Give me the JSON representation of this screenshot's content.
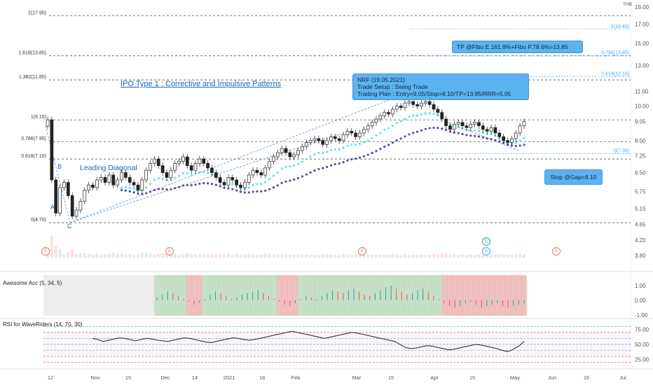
{
  "chart_title": "IPO Type 1 : Corrective and Impulsive Patterns",
  "pattern_label": "Leading Diagonal",
  "currency": "THB",
  "wave_labels": [
    "A",
    "B",
    "C"
  ],
  "fib_left": [
    {
      "label": "2(17.95)",
      "price": 17.95
    },
    {
      "label": "1.618(13.85)",
      "price": 13.85
    },
    {
      "label": "1.382(11.85)",
      "price": 11.85
    },
    {
      "label": "1(9.15)",
      "price": 9.15
    },
    {
      "label": "0.786(7.95)",
      "price": 7.95
    },
    {
      "label": "0.618(7.10)",
      "price": 7.1
    },
    {
      "label": "0(4.70)",
      "price": 4.7
    }
  ],
  "fib_right": [
    {
      "label": "1(16.45)",
      "price": 16.45
    },
    {
      "label": "0.786(13.85)",
      "price": 13.85
    },
    {
      "label": "0.618(12.10)",
      "price": 12.1
    },
    {
      "label": "0(7.35)",
      "price": 7.35
    }
  ],
  "price_ticks": [
    "19.00",
    "17.00",
    "15.00",
    "13.00",
    "11.00",
    "10.00",
    "9.05",
    "8.00",
    "7.25",
    "6.50",
    "5.75",
    "5.15",
    "4.65",
    "4.20",
    "3.80"
  ],
  "price_tick_values": [
    19.0,
    17.0,
    15.0,
    13.0,
    11.0,
    10.0,
    9.05,
    8.0,
    7.25,
    6.5,
    5.75,
    5.15,
    4.65,
    4.2,
    3.8
  ],
  "time_labels": [
    "12",
    "Nov",
    "15",
    "Dec",
    "14",
    "2021",
    "18",
    "Feb",
    "Mar",
    "15",
    "Apr",
    "15",
    "May",
    "Jun",
    "16",
    "Jul"
  ],
  "callouts": {
    "tp": "TP @Fibo E.161.8%+Fibo P.78.6%=13.85",
    "plan_title": "NRF (19.05.2021)",
    "plan_setup": "Trade Setup : Swing Trade",
    "plan_text": "Trading Plan  : Entry=9.05/Stop=8.10/TP=13.85/RRR=5.05",
    "stop": "Stop @Gap=8.10"
  },
  "badges": {
    "earnings": "E",
    "dividend": "D",
    "split": "S"
  },
  "indicators": {
    "ao": {
      "label": "Awesome Acc (5, 34, 5)",
      "ticks": [
        "1.00",
        "0.00",
        "-1.00"
      ],
      "tick_values": [
        1.0,
        0.0,
        -1.0
      ]
    },
    "rsi": {
      "label": "RSI for WaveRiders (14, 70, 30)",
      "ticks": [
        "75.00",
        "50.00",
        "25.00"
      ],
      "tick_values": [
        75,
        50,
        25
      ]
    }
  },
  "colors": {
    "up": "#26a69a",
    "down": "#ef5350",
    "ema_fast": "#5ee7e0",
    "ema_slow": "#5c4a9c",
    "callout": "#5cb3f0",
    "fib_line": "#333333",
    "fib_right": "#42a5f5"
  },
  "chart_data": {
    "type": "candlestick",
    "symbol": "NRF",
    "ylabel": "THB",
    "ylim": [
      3.8,
      19.0
    ],
    "scale": "log",
    "close_series": [
      9.15,
      6.2,
      5.0,
      5.9,
      6.1,
      5.6,
      4.9,
      5.1,
      5.4,
      5.8,
      6.0,
      5.9,
      6.2,
      6.3,
      6.1,
      6.4,
      6.0,
      6.2,
      6.5,
      6.3,
      6.1,
      6.0,
      5.8,
      6.2,
      6.6,
      6.9,
      7.1,
      6.8,
      6.5,
      6.3,
      6.6,
      6.9,
      7.0,
      7.2,
      6.8,
      6.6,
      6.9,
      7.1,
      6.9,
      6.7,
      6.5,
      6.3,
      6.1,
      6.0,
      6.3,
      6.2,
      6.0,
      5.9,
      6.1,
      6.4,
      6.6,
      6.5,
      6.4,
      6.7,
      7.0,
      7.2,
      7.4,
      7.6,
      7.4,
      7.2,
      7.3,
      7.5,
      7.7,
      7.9,
      8.0,
      8.1,
      8.0,
      7.8,
      8.0,
      8.2,
      8.1,
      8.0,
      8.3,
      8.5,
      8.4,
      8.2,
      8.4,
      8.6,
      8.8,
      9.0,
      9.2,
      9.4,
      9.6,
      9.5,
      9.8,
      10.0,
      9.9,
      10.2,
      10.3,
      10.1,
      10.0,
      10.2,
      10.3,
      10.1,
      9.8,
      9.6,
      9.2,
      8.8,
      8.6,
      8.9,
      9.0,
      8.8,
      8.7,
      8.9,
      9.0,
      8.8,
      8.6,
      8.5,
      8.7,
      8.4,
      8.2,
      8.0,
      7.9,
      8.1,
      8.4,
      8.8,
      9.05
    ],
    "ao_series": [
      0.2,
      0.4,
      0.6,
      0.5,
      0.3,
      0.1,
      -0.1,
      -0.3,
      -0.2,
      0.1,
      0.4,
      0.6,
      0.5,
      0.3,
      0.1,
      0.2,
      0.4,
      0.5,
      0.6,
      0.7,
      0.5,
      0.3,
      0.1,
      -0.1,
      -0.3,
      -0.4,
      -0.2,
      0.1,
      0.3,
      0.2,
      0.1,
      0.3,
      0.5,
      0.7,
      0.6,
      0.5,
      0.7,
      0.8,
      0.6,
      0.4,
      0.3,
      0.5,
      0.7,
      0.9,
      1.0,
      0.8,
      0.6,
      0.4,
      0.5,
      0.7,
      0.8,
      0.6,
      0.3,
      0.1,
      -0.2,
      -0.4,
      -0.5,
      -0.4,
      -0.2,
      -0.1,
      -0.3,
      -0.5,
      -0.4,
      -0.3,
      -0.2,
      -0.4,
      -0.5,
      -0.4,
      -0.3,
      -0.2
    ],
    "rsi_series": [
      60,
      58,
      55,
      57,
      59,
      61,
      60,
      58,
      56,
      58,
      60,
      59,
      57,
      56,
      55,
      57,
      59,
      61,
      60,
      58,
      56,
      54,
      53,
      55,
      57,
      59,
      61,
      60,
      58,
      57,
      58,
      60,
      62,
      64,
      66,
      68,
      70,
      72,
      70,
      68,
      66,
      64,
      62,
      60,
      62,
      64,
      66,
      68,
      70,
      69,
      67,
      65,
      63,
      61,
      59,
      57,
      55,
      50,
      45,
      43,
      44,
      46,
      48,
      47,
      45,
      43,
      41,
      42,
      44,
      46,
      48,
      50,
      49,
      47,
      45,
      43,
      40,
      38,
      42,
      47,
      55
    ]
  }
}
